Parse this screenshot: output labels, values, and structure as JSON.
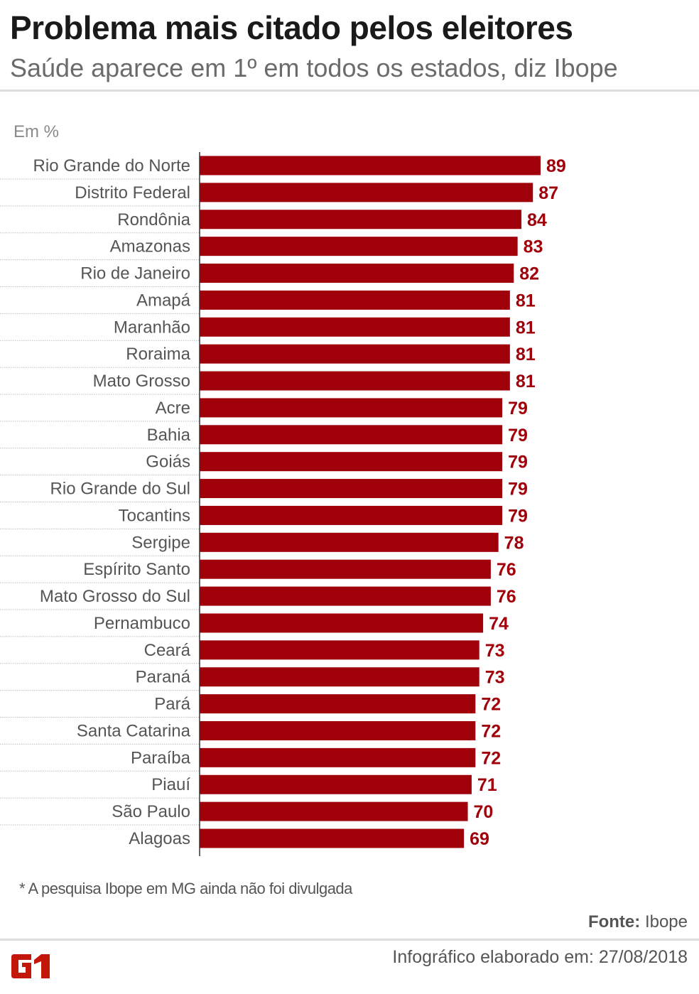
{
  "header": {
    "title": "Problema mais citado pelos eleitores",
    "subtitle": "Saúde aparece em 1º em todos os estados, diz Ibope"
  },
  "chart_data": {
    "type": "bar",
    "orientation": "horizontal",
    "unit_label": "Em %",
    "categories": [
      "Rio Grande do Norte",
      "Distrito Federal",
      "Rondônia",
      "Amazonas",
      "Rio de Janeiro",
      "Amapá",
      "Maranhão",
      "Roraima",
      "Mato Grosso",
      "Acre",
      "Bahia",
      "Goiás",
      "Rio Grande do Sul",
      "Tocantins",
      "Sergipe",
      "Espírito Santo",
      "Mato Grosso do Sul",
      "Pernambuco",
      "Ceará",
      "Paraná",
      "Pará",
      "Santa Catarina",
      "Paraíba",
      "Piauí",
      "São Paulo",
      "Alagoas"
    ],
    "values": [
      89,
      87,
      84,
      83,
      82,
      81,
      81,
      81,
      81,
      79,
      79,
      79,
      79,
      79,
      78,
      76,
      76,
      74,
      73,
      73,
      72,
      72,
      72,
      71,
      70,
      69
    ],
    "xlim": [
      0,
      89
    ],
    "bar_color": "#a0000a",
    "label_color": "#a0000a"
  },
  "footer": {
    "note": "* A pesquisa Ibope em MG ainda não foi divulgada",
    "source_label": "Fonte:",
    "source": "Ibope",
    "made": "Infográfico elaborado em: 27/08/2018",
    "logo": "G1"
  }
}
